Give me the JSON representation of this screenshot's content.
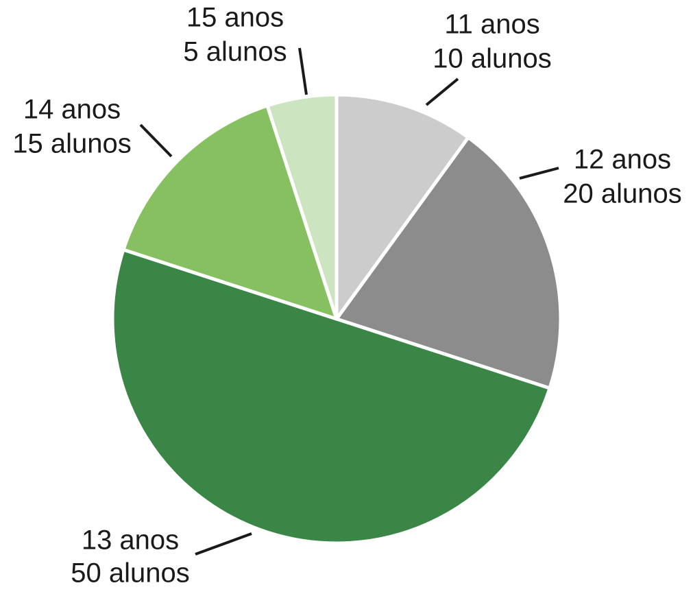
{
  "chart_data": {
    "type": "pie",
    "categories": [
      "11 anos",
      "12 anos",
      "13 anos",
      "14 anos",
      "15 anos"
    ],
    "values": [
      10,
      20,
      50,
      15,
      5
    ],
    "value_labels": [
      "10 alunos",
      "20 alunos",
      "50 alunos",
      "15 alunos",
      "5 alunos"
    ],
    "colors": [
      "#cccccc",
      "#8c8c8c",
      "#3a8646",
      "#86c060",
      "#cce4c0"
    ]
  }
}
